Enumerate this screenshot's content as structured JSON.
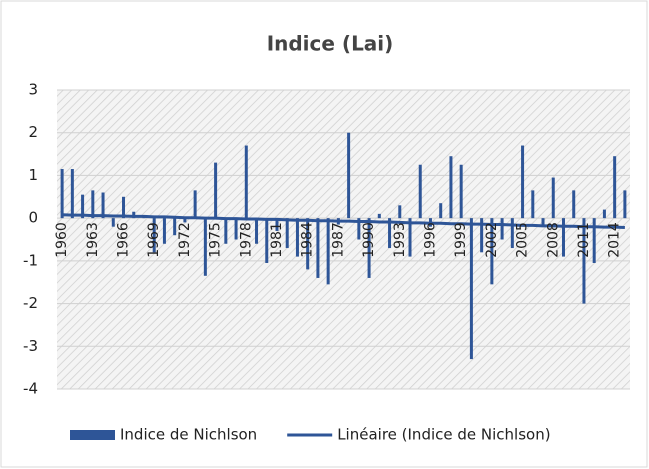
{
  "chart_data": {
    "type": "bar",
    "title": "Indice (Lai)",
    "categories": [
      "1960",
      null,
      null,
      "1963",
      null,
      null,
      "1966",
      null,
      null,
      "1969",
      null,
      null,
      "1972",
      null,
      null,
      "1975",
      null,
      null,
      "1978",
      null,
      null,
      "1981",
      null,
      null,
      "1984",
      null,
      null,
      "1987",
      null,
      null,
      "1990",
      null,
      null,
      "1993",
      null,
      null,
      "1996",
      null,
      null,
      "1999",
      null,
      null,
      "2002",
      null,
      null,
      "2005",
      null,
      null,
      "2008",
      null,
      null,
      "2011",
      null,
      null,
      "2014",
      null
    ],
    "series": [
      {
        "name": "Indice de Nichlson",
        "type": "bar",
        "color": "#2e5597",
        "values": [
          1.15,
          1.15,
          0.55,
          0.65,
          0.6,
          -0.2,
          0.5,
          0.15,
          0.05,
          -0.8,
          -0.6,
          -0.4,
          -0.1,
          0.65,
          -1.35,
          1.3,
          -0.6,
          -0.5,
          1.7,
          -0.6,
          -1.05,
          -0.3,
          -0.7,
          -0.9,
          -1.2,
          -1.4,
          -1.55,
          -0.15,
          2.0,
          -0.5,
          -1.4,
          0.1,
          -0.7,
          0.3,
          -0.9,
          1.25,
          -0.2,
          0.35,
          1.45,
          1.25,
          -3.3,
          -0.8,
          -1.55,
          -0.5,
          -0.7,
          1.7,
          0.65,
          -0.2,
          0.95,
          -0.9,
          0.65,
          -2.0,
          -1.05,
          0.2,
          1.45,
          0.65
        ]
      },
      {
        "name": "Linéaire (Indice de Nichlson)",
        "type": "line",
        "color": "#2e5597",
        "values": [
          0.08,
          0.07,
          0.07,
          0.06,
          0.06,
          0.05,
          0.05,
          0.04,
          0.04,
          0.03,
          0.03,
          0.02,
          0.01,
          0.01,
          0.0,
          0.0,
          -0.01,
          -0.01,
          -0.02,
          -0.02,
          -0.03,
          -0.03,
          -0.04,
          -0.05,
          -0.05,
          -0.06,
          -0.06,
          -0.07,
          -0.07,
          -0.08,
          -0.08,
          -0.09,
          -0.09,
          -0.1,
          -0.11,
          -0.11,
          -0.12,
          -0.12,
          -0.13,
          -0.13,
          -0.14,
          -0.14,
          -0.15,
          -0.15,
          -0.16,
          -0.17,
          -0.17,
          -0.18,
          -0.18,
          -0.19,
          -0.19,
          -0.2,
          -0.2,
          -0.21,
          -0.21,
          -0.22
        ]
      }
    ],
    "ylim": [
      -4,
      3
    ],
    "yticks": [
      -4,
      -3,
      -2,
      -1,
      0,
      1,
      2,
      3
    ],
    "grid": true,
    "legend": "bottom"
  }
}
